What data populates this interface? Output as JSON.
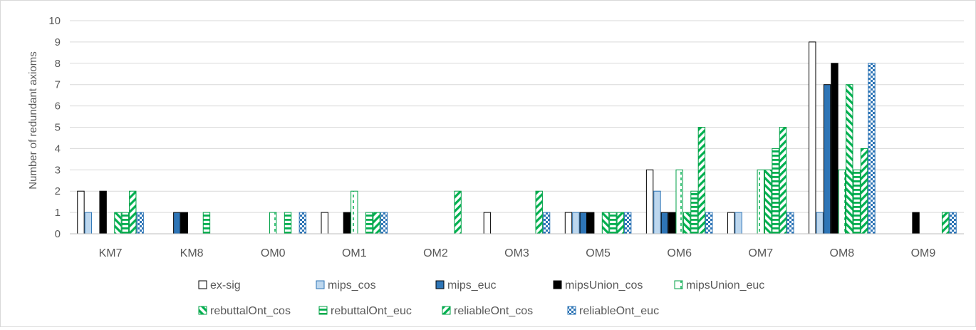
{
  "chart_data": {
    "type": "bar",
    "title": "",
    "xlabel": "",
    "ylabel": "Number of redundant axioms",
    "ylim": [
      0,
      10
    ],
    "yticks": [
      0,
      1,
      2,
      3,
      4,
      5,
      6,
      7,
      8,
      9,
      10
    ],
    "grid": true,
    "legend_position": "bottom",
    "categories": [
      "KM7",
      "KM8",
      "OM0",
      "OM1",
      "OM2",
      "OM3",
      "OM5",
      "OM6",
      "OM7",
      "OM8",
      "OM9"
    ],
    "series": [
      {
        "name": "ex-sig",
        "pattern": "solid",
        "color": "#ffffff",
        "values": [
          2,
          0,
          0,
          1,
          0,
          1,
          1,
          3,
          1,
          9,
          0
        ]
      },
      {
        "name": "mips_cos",
        "pattern": "solid",
        "color": "#bdd7ee",
        "values": [
          1,
          0,
          0,
          0,
          0,
          0,
          1,
          2,
          1,
          1,
          0
        ]
      },
      {
        "name": "mips_euc",
        "pattern": "solid",
        "color": "#2e75b6",
        "values": [
          0,
          1,
          0,
          0,
          0,
          0,
          1,
          1,
          0,
          7,
          0
        ]
      },
      {
        "name": "mipsUnion_cos",
        "pattern": "solid",
        "color": "#000000",
        "values": [
          2,
          1,
          0,
          1,
          0,
          0,
          1,
          1,
          0,
          8,
          1
        ]
      },
      {
        "name": "mipsUnion_euc",
        "pattern": "dashed-vertical",
        "color": "#00b050",
        "values": [
          0,
          0,
          1,
          2,
          0,
          0,
          0,
          3,
          3,
          3,
          0
        ]
      },
      {
        "name": "rebuttalOnt_cos",
        "pattern": "diagonal-up",
        "color": "#00b050",
        "values": [
          1,
          0,
          0,
          0,
          0,
          0,
          1,
          1,
          3,
          7,
          0
        ]
      },
      {
        "name": "rebuttalOnt_euc",
        "pattern": "horizontal",
        "color": "#00b050",
        "values": [
          1,
          1,
          1,
          1,
          0,
          0,
          1,
          2,
          4,
          3,
          0
        ]
      },
      {
        "name": "reliableOnt_cos",
        "pattern": "diagonal-down",
        "color": "#00b050",
        "values": [
          2,
          0,
          0,
          1,
          2,
          2,
          1,
          5,
          5,
          4,
          1
        ]
      },
      {
        "name": "reliableOnt_euc",
        "pattern": "checker",
        "color": "#2e75b6",
        "values": [
          1,
          0,
          1,
          1,
          0,
          1,
          1,
          1,
          1,
          8,
          1
        ]
      }
    ]
  }
}
